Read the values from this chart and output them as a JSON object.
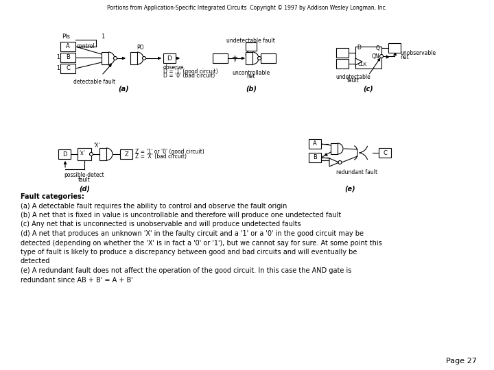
{
  "title_text": "Portions from Application-Specific Integrated Circuits  Copyright © 1997 by Addison Wesley Longman, Inc.",
  "page_number": "Page 27",
  "background_color": "#ffffff",
  "text_color": "#000000",
  "body_lines": [
    "Fault categories:",
    "(a) A detectable fault requires the ability to control and observe the fault origin",
    "(b) A net that is fixed in value is uncontrollable and therefore will produce one undetected fault",
    "(c) Any net that is unconnected is unobservable and will produce undetected faults",
    "(d) A net that produces an unknown 'X' in the faulty circuit and a '1' or a '0' in the good circuit may be",
    "detected (depending on whether the 'X' is in fact a '0' or '1'), but we cannot say for sure. At some point this",
    "type of fault is likely to produce a discrepancy between good and bad circuits and will eventually be",
    "detected",
    "(e) A redundant fault does not affect the operation of the good circuit. In this case the AND gate is",
    "redundant since AB + B' = A + B'"
  ],
  "figsize": [
    7.2,
    5.4
  ],
  "dpi": 100
}
